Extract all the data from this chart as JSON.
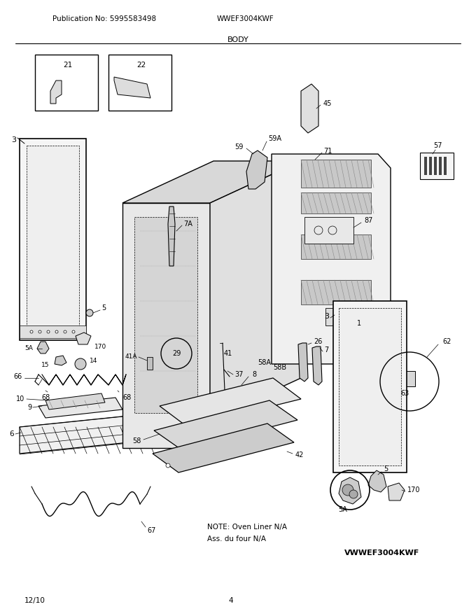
{
  "publication_no": "Publication No: 5995583498",
  "model": "WWEF3004KWF",
  "section": "BODY",
  "date": "12/10",
  "page": "4",
  "vmodel": "VWWEF3004KWF",
  "note_line1": "NOTE: Oven Liner N/A",
  "note_line2": "Ass. du four N/A",
  "bg_color": "#ffffff",
  "line_color": "#000000",
  "fig_w": 6.8,
  "fig_h": 8.8,
  "dpi": 100
}
